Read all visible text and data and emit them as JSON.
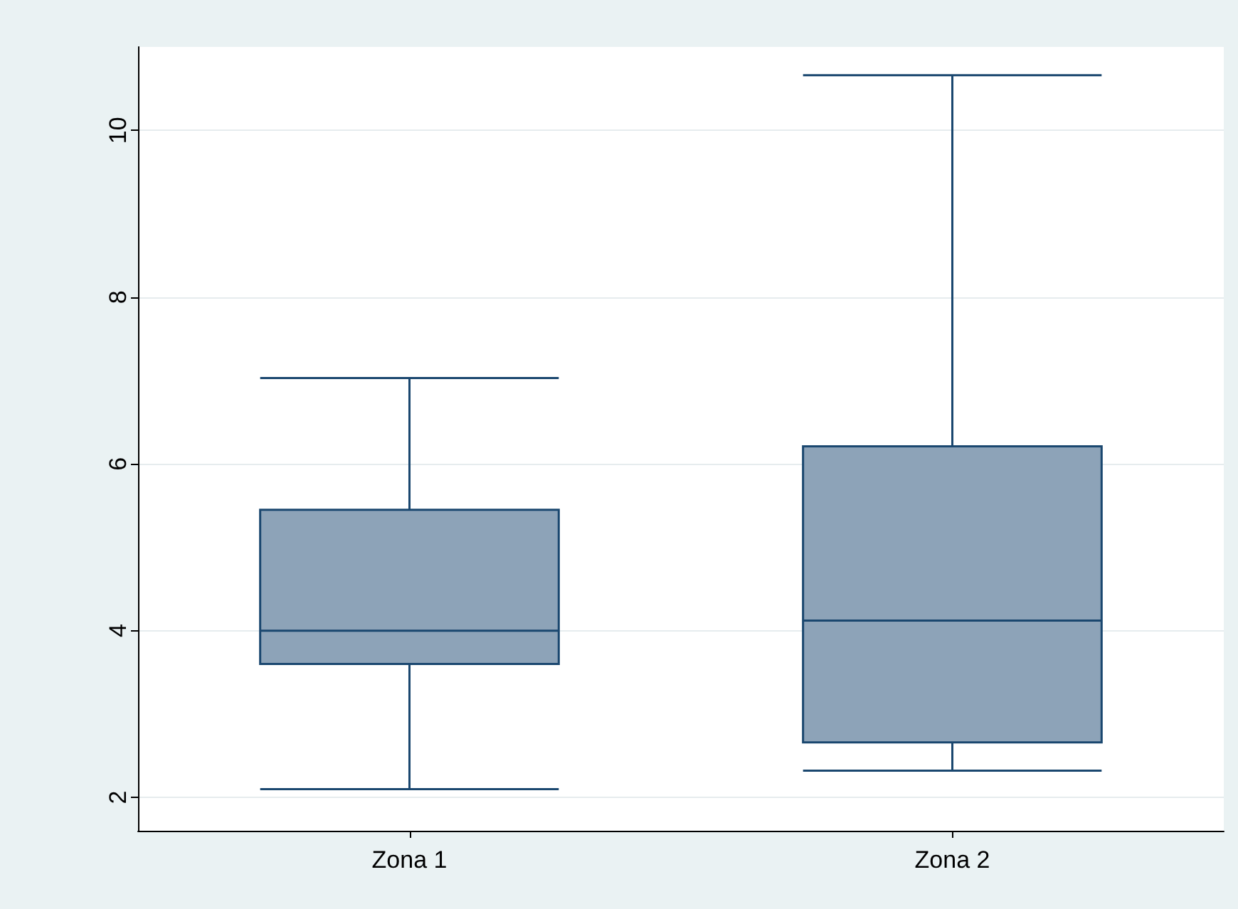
{
  "chart_data": {
    "type": "box",
    "categories": [
      "Zona 1",
      "Zona 2"
    ],
    "boxes": [
      {
        "low": 2.1,
        "q1": 3.6,
        "median": 4.0,
        "q3": 5.45,
        "high": 7.03
      },
      {
        "low": 2.32,
        "q1": 2.66,
        "median": 4.12,
        "q3": 6.21,
        "high": 10.66
      }
    ],
    "color": "#8da3b8",
    "ylim": [
      1.6,
      11
    ],
    "yticks": [
      2,
      4,
      6,
      8,
      10
    ],
    "grid": "y"
  }
}
